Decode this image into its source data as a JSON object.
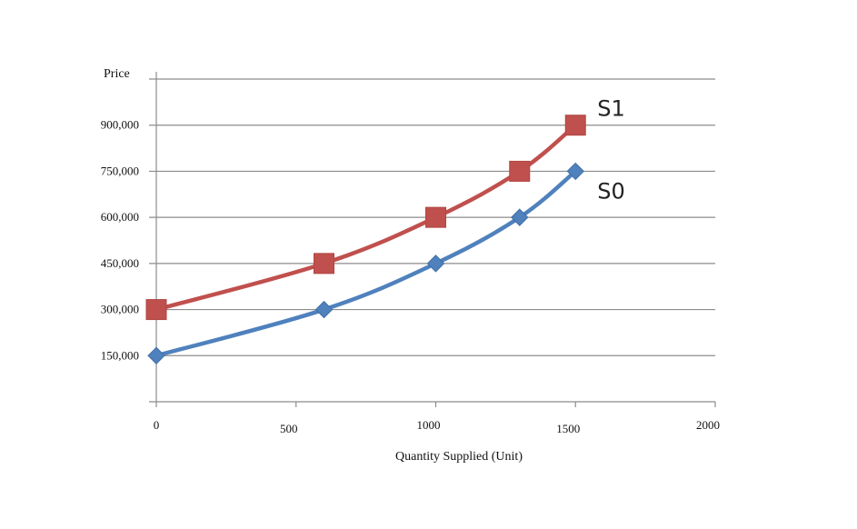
{
  "chart_data": {
    "type": "line",
    "title": "",
    "xlabel": "Quantity Supplied (Unit)",
    "ylabel": "Price",
    "xlim": [
      0,
      2000
    ],
    "ylim": [
      0,
      1050000
    ],
    "x_ticks": [
      0,
      500,
      1000,
      1500,
      2000
    ],
    "x_tick_labels": [
      "0",
      "500",
      "1000",
      "1500",
      "2000"
    ],
    "y_ticks": [
      150000,
      300000,
      450000,
      600000,
      750000,
      900000
    ],
    "y_tick_labels": [
      "150,000",
      "300,000",
      "450,000",
      "600,000",
      "750,000",
      "900,000"
    ],
    "grid": true,
    "series": [
      {
        "name": "S1",
        "color": "#c0504d",
        "marker": "square",
        "points": [
          [
            0,
            300000
          ],
          [
            600,
            450000
          ],
          [
            1000,
            600000
          ],
          [
            1300,
            750000
          ],
          [
            1500,
            900000
          ]
        ]
      },
      {
        "name": "S0",
        "color": "#4f81bd",
        "marker": "diamond",
        "points": [
          [
            0,
            150000
          ],
          [
            600,
            300000
          ],
          [
            1000,
            450000
          ],
          [
            1300,
            600000
          ],
          [
            1500,
            750000
          ]
        ]
      }
    ]
  }
}
